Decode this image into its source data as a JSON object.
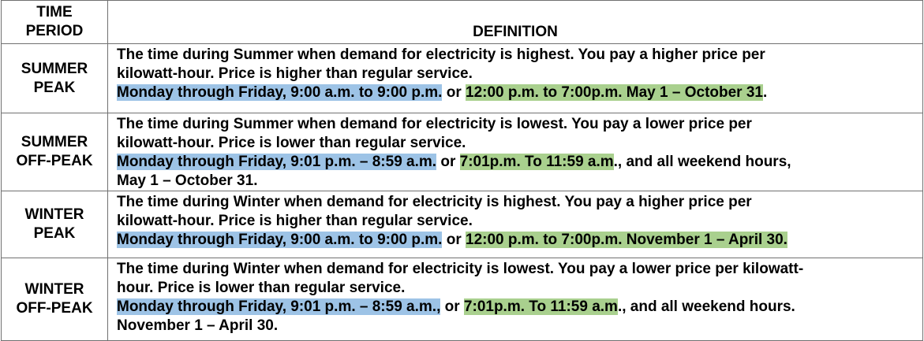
{
  "header": {
    "period_line1": "TIME",
    "period_line2": "PERIOD",
    "definition": "DEFINITION"
  },
  "rows": [
    {
      "period_line1": "SUMMER",
      "period_line2": "PEAK",
      "line1": "The time during Summer when demand for electricity is highest. You pay a higher price per",
      "line2": "kilowatt-hour. Price is higher than regular service.",
      "blue": "Monday through Friday, 9:00 a.m. to 9:00 p.m.",
      "mid": " or ",
      "green": "12:00 p.m. to 7:00p.m. May 1 – October 31",
      "tail": ".",
      "line4": ""
    },
    {
      "period_line1": "SUMMER",
      "period_line2": "OFF-PEAK",
      "line1": "The time during Summer when demand for electricity is lowest. You pay a lower price per",
      "line2": "kilowatt-hour. Price is lower than regular service.",
      "blue": "Monday through Friday, 9:01 p.m. – 8:59 a.m.",
      "mid": " or ",
      "green": "7:01p.m. To 11:59 a.m",
      "tail": "., and all weekend hours,",
      "line4": "May 1 – October 31."
    },
    {
      "period_line1": "WINTER",
      "period_line2": "PEAK",
      "line1": "The time during Winter when demand for electricity is highest. You pay a higher price per",
      "line2": "kilowatt-hour. Price is higher than regular service.",
      "blue": "Monday through Friday, 9:00 a.m. to 9:00 p.m.",
      "mid": " or ",
      "green": "12:00 p.m. to 7:00p.m. November 1 – April 30.",
      "tail": "",
      "line4": ""
    },
    {
      "period_line1": "WINTER",
      "period_line2": "OFF-PEAK",
      "line1": "The time during Winter when demand for electricity is lowest. You pay a lower price per kilowatt-",
      "line2": "hour. Price is lower than regular service.",
      "blue": "Monday through Friday, 9:01 p.m. – 8:59 a.m.,",
      "mid": " or ",
      "green": "7:01p.m. To 11:59 a.m",
      "tail": "., and all weekend hours.",
      "line4": "November 1 – April 30."
    }
  ],
  "colors": {
    "blue_highlight": "#9dc3e6",
    "green_highlight": "#a9d08e"
  }
}
